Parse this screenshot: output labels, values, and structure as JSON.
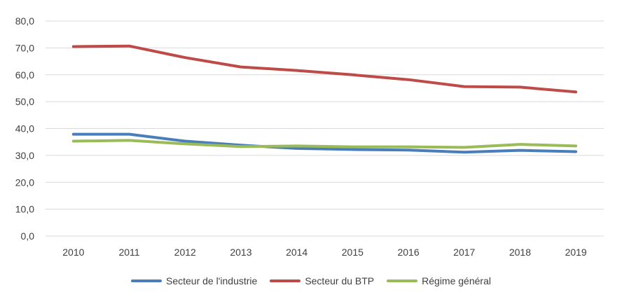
{
  "chart_data": {
    "type": "line",
    "categories": [
      "2010",
      "2011",
      "2012",
      "2013",
      "2014",
      "2015",
      "2016",
      "2017",
      "2018",
      "2019"
    ],
    "ylim": [
      0,
      80
    ],
    "ytick_labels": [
      "0,0",
      "10,0",
      "20,0",
      "30,0",
      "40,0",
      "50,0",
      "60,0",
      "70,0",
      "80,0"
    ],
    "grid": true,
    "legend_position": "bottom",
    "series": [
      {
        "name": "Secteur de l'industrie",
        "color": "#4a7ebb",
        "values": [
          37.9,
          37.9,
          35.3,
          33.8,
          32.6,
          32.2,
          32.0,
          31.2,
          31.9,
          31.4
        ]
      },
      {
        "name": "Secteur du BTP",
        "color": "#be4b48",
        "values": [
          70.5,
          70.7,
          66.4,
          62.9,
          61.6,
          60.0,
          58.2,
          55.6,
          55.4,
          53.6
        ]
      },
      {
        "name": "Régime général",
        "color": "#9bbb59",
        "values": [
          35.3,
          35.6,
          34.3,
          33.3,
          33.5,
          33.2,
          33.2,
          33.0,
          34.1,
          33.5
        ]
      }
    ]
  }
}
